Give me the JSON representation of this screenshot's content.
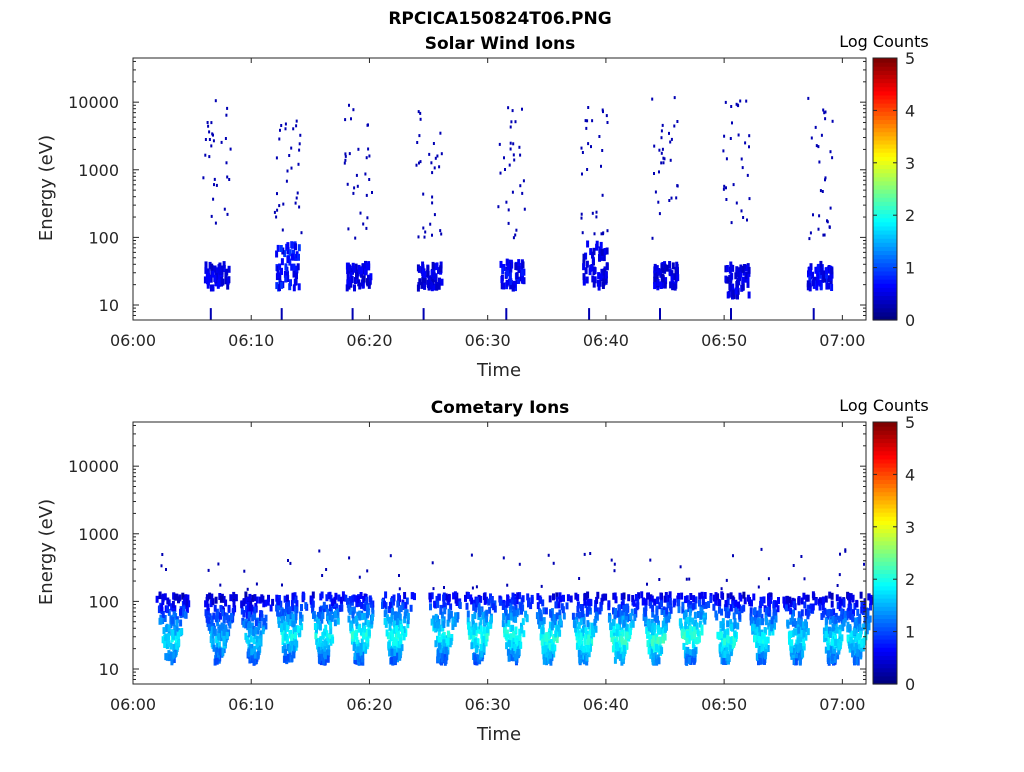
{
  "figure": {
    "title": "RPCICA150824T06.PNG"
  },
  "colorbar": {
    "label": "Log Counts",
    "ticks": [
      "0",
      "1",
      "2",
      "3",
      "4",
      "5"
    ],
    "range": [
      0,
      5
    ],
    "colormap": "jet"
  },
  "chart_data": [
    {
      "type": "heatmap",
      "title": "Solar Wind Ions",
      "xlabel": "Time",
      "ylabel": "Energy (eV)",
      "y_scale": "log",
      "ylim": [
        6,
        45000
      ],
      "xlim": [
        "06:00",
        "07:02"
      ],
      "x_ticks": [
        "06:00",
        "06:10",
        "06:20",
        "06:30",
        "06:40",
        "06:50",
        "07:00"
      ],
      "y_ticks": [
        "10",
        "100",
        "1000",
        "10000"
      ],
      "description_bands": [
        {
          "t": "06:07",
          "core_energy": [
            20,
            45
          ],
          "level": 0.5
        },
        {
          "t": "06:13",
          "core_energy": [
            20,
            90
          ],
          "level": 0.7
        },
        {
          "t": "06:19",
          "core_energy": [
            20,
            45
          ],
          "level": 0.5
        },
        {
          "t": "06:25",
          "core_energy": [
            20,
            45
          ],
          "level": 0.5
        },
        {
          "t": "06:32",
          "core_energy": [
            20,
            50
          ],
          "level": 0.6
        },
        {
          "t": "06:39",
          "core_energy": [
            20,
            90
          ],
          "level": 0.5
        },
        {
          "t": "06:45",
          "core_energy": [
            20,
            45
          ],
          "level": 0.5
        },
        {
          "t": "06:51",
          "core_energy": [
            15,
            45
          ],
          "level": 0.5
        },
        {
          "t": "06:58",
          "core_energy": [
            20,
            45
          ],
          "level": 0.6
        }
      ]
    },
    {
      "type": "heatmap",
      "title": "Cometary Ions",
      "xlabel": "Time",
      "ylabel": "Energy (eV)",
      "y_scale": "log",
      "ylim": [
        6,
        45000
      ],
      "xlim": [
        "06:00",
        "07:02"
      ],
      "x_ticks": [
        "06:00",
        "06:10",
        "06:20",
        "06:30",
        "06:40",
        "06:50",
        "07:00"
      ],
      "y_ticks": [
        "10",
        "100",
        "1000",
        "10000"
      ],
      "description_bands": [
        {
          "t": "06:03",
          "peak_energy": 30,
          "level": 1.8
        },
        {
          "t": "06:07",
          "peak_energy": 30,
          "level": 1.6
        },
        {
          "t": "06:10",
          "peak_energy": 30,
          "level": 1.6
        },
        {
          "t": "06:13",
          "peak_energy": 35,
          "level": 1.9
        },
        {
          "t": "06:16",
          "peak_energy": 35,
          "level": 1.9
        },
        {
          "t": "06:19",
          "peak_energy": 35,
          "level": 2.0
        },
        {
          "t": "06:22",
          "peak_energy": 35,
          "level": 2.0
        },
        {
          "t": "06:26",
          "peak_energy": 35,
          "level": 1.9
        },
        {
          "t": "06:29",
          "peak_energy": 35,
          "level": 2.0
        },
        {
          "t": "06:32",
          "peak_energy": 35,
          "level": 2.0
        },
        {
          "t": "06:35",
          "peak_energy": 30,
          "level": 2.1
        },
        {
          "t": "06:38",
          "peak_energy": 30,
          "level": 2.0
        },
        {
          "t": "06:41",
          "peak_energy": 30,
          "level": 2.1
        },
        {
          "t": "06:44",
          "peak_energy": 30,
          "level": 2.1
        },
        {
          "t": "06:47",
          "peak_energy": 35,
          "level": 2.1
        },
        {
          "t": "06:50",
          "peak_energy": 30,
          "level": 2.0
        },
        {
          "t": "06:53",
          "peak_energy": 30,
          "level": 1.9
        },
        {
          "t": "06:56",
          "peak_energy": 30,
          "level": 1.8
        },
        {
          "t": "06:59",
          "peak_energy": 30,
          "level": 1.8
        },
        {
          "t": "07:01",
          "peak_energy": 30,
          "level": 1.8
        }
      ]
    }
  ]
}
